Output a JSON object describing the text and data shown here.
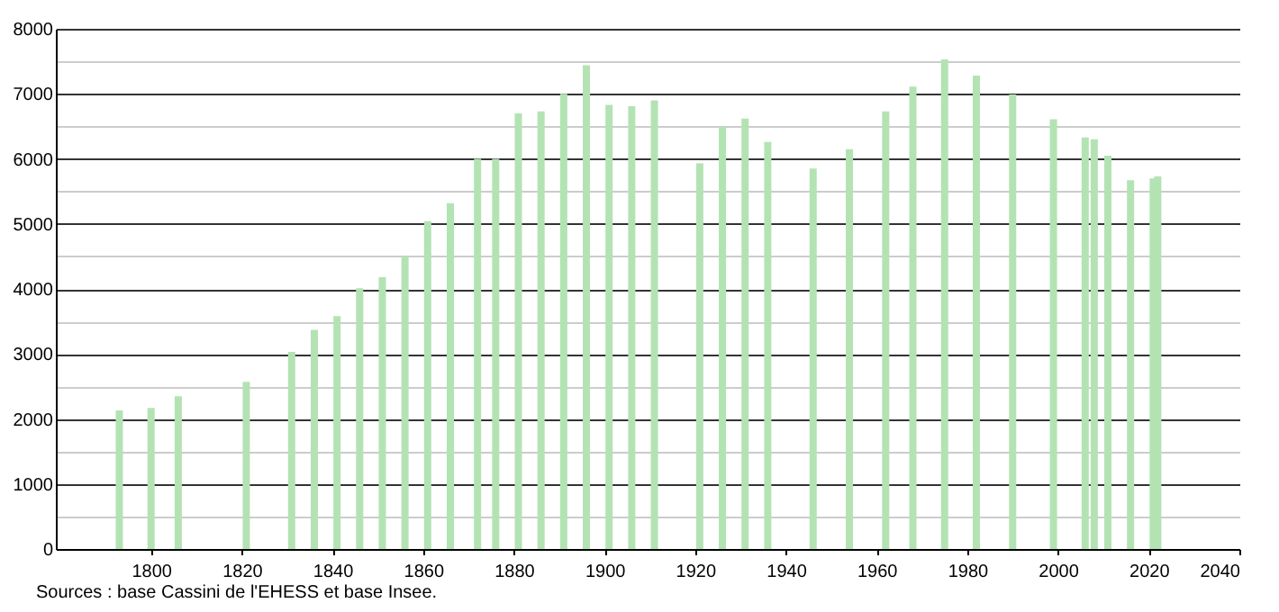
{
  "chart_data": {
    "type": "bar",
    "annotations": [
      "Sources : base Cassini de l'EHESS et base Insee."
    ],
    "x": [
      1793,
      1800,
      1806,
      1821,
      1831,
      1836,
      1841,
      1846,
      1851,
      1856,
      1861,
      1866,
      1872,
      1876,
      1881,
      1886,
      1891,
      1896,
      1901,
      1906,
      1911,
      1921,
      1926,
      1931,
      1936,
      1946,
      1954,
      1962,
      1968,
      1975,
      1982,
      1990,
      1999,
      2006,
      2008,
      2011,
      2016,
      2021,
      2022
    ],
    "series": [
      {
        "color": "#b3e3b3",
        "values": [
          2130,
          2170,
          2350,
          2570,
          3030,
          3370,
          3580,
          4010,
          4180,
          4500,
          5040,
          5320,
          6000,
          6000,
          6700,
          6730,
          7000,
          7440,
          6830,
          6810,
          6900,
          5930,
          6490,
          6620,
          6260,
          5850,
          6150,
          6730,
          7110,
          7530,
          7280,
          6990,
          6610,
          6330,
          6300,
          6050,
          5670,
          5700,
          5730
        ]
      }
    ],
    "xlim": [
      1779,
      2040
    ],
    "xticks": [
      1800,
      1820,
      1840,
      1860,
      1880,
      1900,
      1920,
      1940,
      1960,
      1980,
      2000,
      2020,
      2040
    ],
    "ylim": [
      0,
      8000
    ],
    "yticks": [
      0,
      {
        "value": 500,
        "label": null
      },
      1000,
      {
        "value": 1500,
        "label": null
      },
      2000,
      {
        "value": 2500,
        "label": null
      },
      3000,
      {
        "value": 3500,
        "label": null
      },
      4000,
      {
        "value": 4500,
        "label": null
      },
      5000,
      {
        "value": 5500,
        "label": null
      },
      6000,
      {
        "value": 6500,
        "label": null
      },
      7000,
      {
        "value": 7500,
        "label": null
      },
      8000
    ],
    "grid": "y"
  }
}
